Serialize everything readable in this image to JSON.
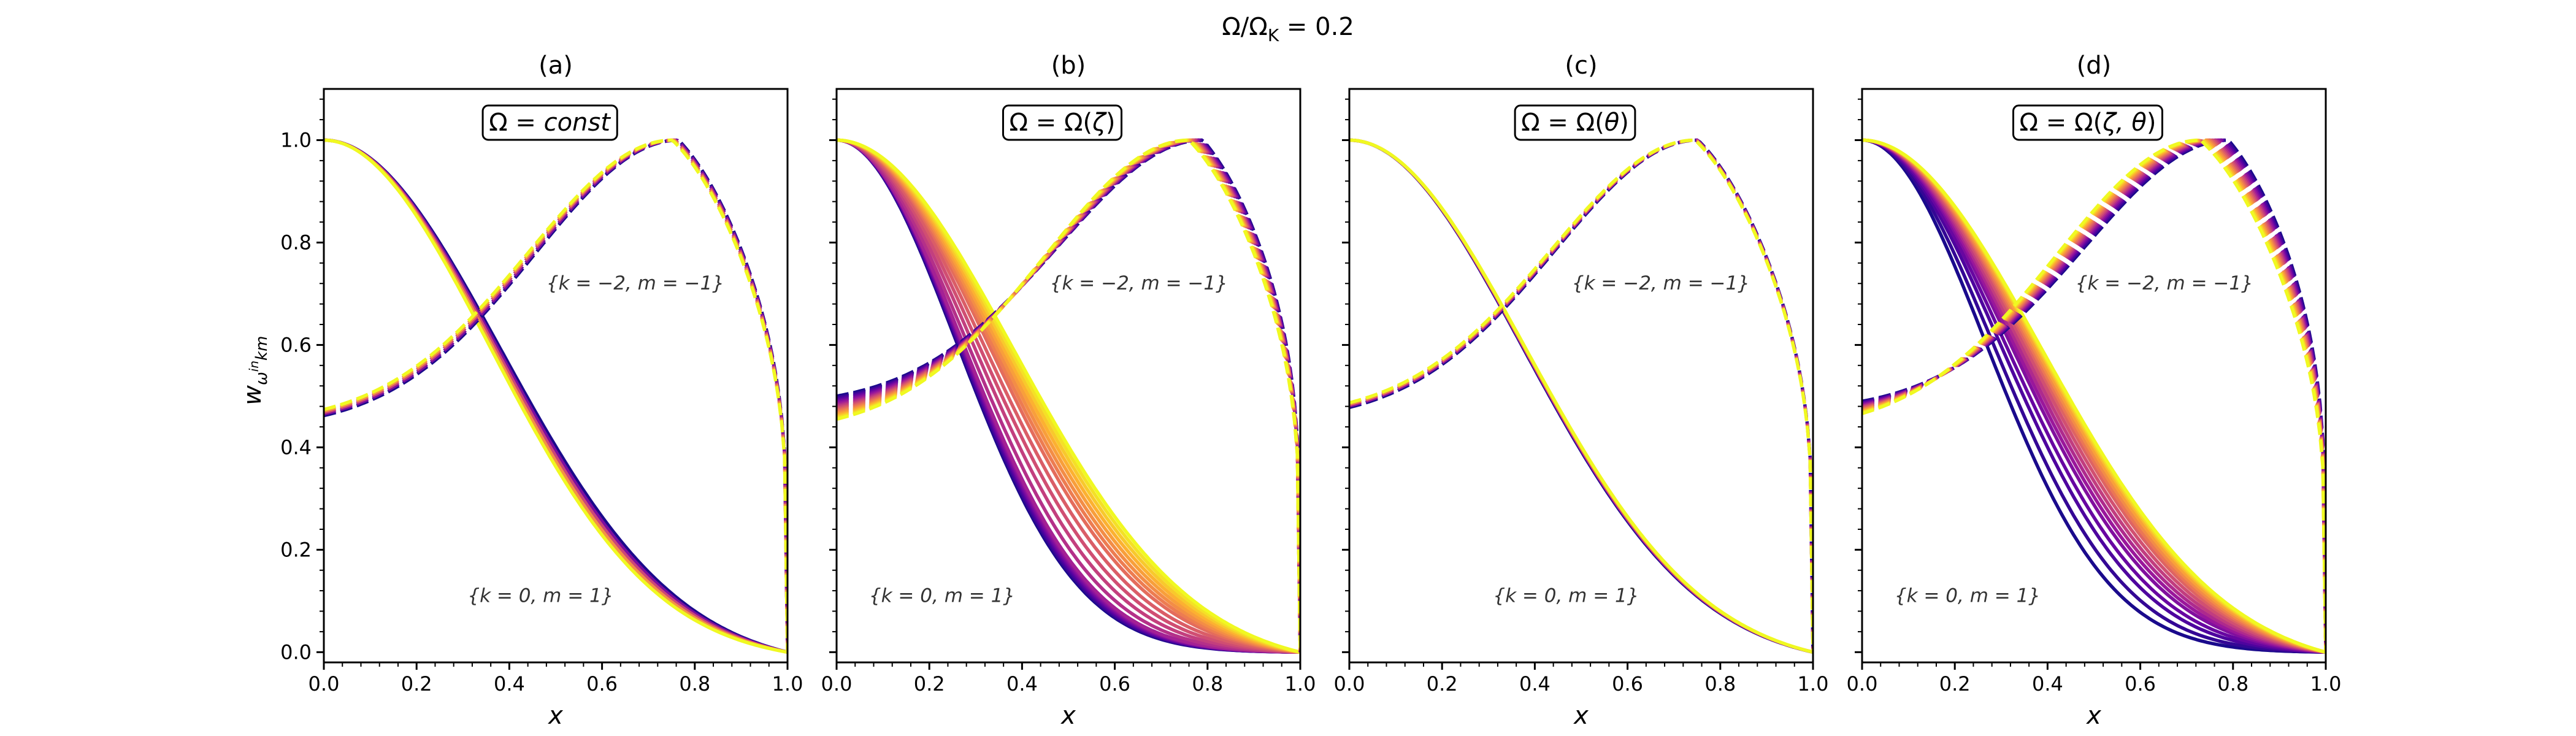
{
  "figure": {
    "suptitle": "Ω/Ω_K = 0.2",
    "suptitle_parts": {
      "a": "Ω/Ω",
      "sub": "K",
      "b": " = 0.2"
    }
  },
  "chart_data": [
    {
      "type": "line",
      "panel": "(a)",
      "title": "(a)",
      "box_label": "Ω = const",
      "box_parts": {
        "pre": "Ω = ",
        "it": "const",
        "post": ""
      },
      "xlabel": "x",
      "ylabel": "w_{ω^{in}km}",
      "ylabel_parts": {
        "w": "w",
        "sub1": "ω",
        "sup": "in",
        "sub2": "km"
      },
      "xlim": [
        0,
        1
      ],
      "ylim": [
        -0.02,
        1.1
      ],
      "xticks": [
        "0.0",
        "0.2",
        "0.4",
        "0.6",
        "0.8",
        "1.0"
      ],
      "yticks": [
        "0.0",
        "0.2",
        "0.4",
        "0.6",
        "0.8",
        "1.0"
      ],
      "annotations": [
        {
          "text": "{k = −2, m = −1}",
          "x": 0.48,
          "y": 0.72
        },
        {
          "text": "{k = 0, m = 1}",
          "x": 0.31,
          "y": 0.11
        }
      ],
      "colormap": [
        "#1a0a8c",
        "#5b02a3",
        "#9a179b",
        "#cb4678",
        "#eb7655",
        "#fdad32",
        "#f0f921"
      ],
      "families": [
        {
          "label": "{k = 0, m = 1}",
          "kind": "solid",
          "width_scales": [
            1.0,
            0.985,
            0.97,
            0.955,
            0.94
          ]
        },
        {
          "label": "{k = −2, m = −1}",
          "kind": "dashed",
          "peak_x": [
            0.765,
            0.762,
            0.758,
            0.755,
            0.752
          ],
          "y0": [
            0.462,
            0.465,
            0.468,
            0.471,
            0.474
          ]
        }
      ]
    },
    {
      "type": "line",
      "panel": "(b)",
      "title": "(b)",
      "box_label": "Ω = Ω(ζ)",
      "box_parts": {
        "pre": "Ω = Ω(",
        "it": "ζ",
        "post": ")"
      },
      "xlabel": "x",
      "xlim": [
        0,
        1
      ],
      "ylim": [
        -0.02,
        1.1
      ],
      "xticks": [
        "0.0",
        "0.2",
        "0.4",
        "0.6",
        "0.8",
        "1.0"
      ],
      "annotations": [
        {
          "text": "{k = −2, m = −1}",
          "x": 0.46,
          "y": 0.72
        },
        {
          "text": "{k = 0, m = 1}",
          "x": 0.07,
          "y": 0.11
        }
      ],
      "colormap": [
        "#1a0a8c",
        "#5b02a3",
        "#9a179b",
        "#cb4678",
        "#eb7655",
        "#fdad32",
        "#f0f921"
      ],
      "families": [
        {
          "label": "{k = 0, m = 1}",
          "kind": "solid",
          "width_scales": [
            0.68,
            0.685,
            0.69,
            0.695,
            0.7,
            0.705,
            0.71,
            0.715,
            0.74,
            0.77,
            0.8,
            0.83,
            0.86,
            0.88,
            0.9,
            0.92,
            0.94,
            0.96,
            0.98,
            1.0
          ]
        },
        {
          "label": "{k = −2, m = −1}",
          "kind": "dashed",
          "peak_x": [
            0.79,
            0.788,
            0.786,
            0.784,
            0.782,
            0.78,
            0.778,
            0.776,
            0.774,
            0.772,
            0.77,
            0.768,
            0.766,
            0.764,
            0.762,
            0.76
          ],
          "y0": [
            0.5,
            0.497,
            0.494,
            0.491,
            0.488,
            0.485,
            0.482,
            0.479,
            0.476,
            0.473,
            0.47,
            0.467,
            0.464,
            0.461,
            0.458,
            0.455
          ]
        }
      ]
    },
    {
      "type": "line",
      "panel": "(c)",
      "title": "(c)",
      "box_label": "Ω = Ω(θ)",
      "box_parts": {
        "pre": "Ω = Ω(",
        "it": "θ",
        "post": ")"
      },
      "xlabel": "x",
      "xlim": [
        0,
        1
      ],
      "ylim": [
        -0.02,
        1.1
      ],
      "xticks": [
        "0.0",
        "0.2",
        "0.4",
        "0.6",
        "0.8",
        "1.0"
      ],
      "annotations": [
        {
          "text": "{k = −2, m = −1}",
          "x": 0.48,
          "y": 0.72
        },
        {
          "text": "{k = 0, m = 1}",
          "x": 0.31,
          "y": 0.11
        }
      ],
      "colormap": [
        "#1a0a8c",
        "#5b02a3",
        "#9a179b",
        "#cb4678",
        "#eb7655",
        "#fdad32",
        "#f0f921"
      ],
      "families": [
        {
          "label": "{k = 0, m = 1}",
          "kind": "solid",
          "width_scales": [
            0.985,
            0.99,
            0.995,
            1.0
          ]
        },
        {
          "label": "{k = −2, m = −1}",
          "kind": "dashed",
          "peak_x": [
            0.752,
            0.75,
            0.748,
            0.746
          ],
          "y0": [
            0.478,
            0.481,
            0.484,
            0.487
          ]
        }
      ]
    },
    {
      "type": "line",
      "panel": "(d)",
      "title": "(d)",
      "box_label": "Ω = Ω(ζ, θ)",
      "box_parts": {
        "pre": "Ω = Ω(",
        "it": "ζ, θ",
        "post": ")"
      },
      "xlabel": "x",
      "xlim": [
        0,
        1
      ],
      "ylim": [
        -0.02,
        1.1
      ],
      "xticks": [
        "0.0",
        "0.2",
        "0.4",
        "0.6",
        "0.8",
        "1.0"
      ],
      "annotations": [
        {
          "text": "{k = −2, m = −1}",
          "x": 0.46,
          "y": 0.72
        },
        {
          "text": "{k = 0, m = 1}",
          "x": 0.07,
          "y": 0.11
        }
      ],
      "colormap": [
        "#1a0a8c",
        "#5b02a3",
        "#9a179b",
        "#cb4678",
        "#eb7655",
        "#fdad32",
        "#f0f921"
      ],
      "families": [
        {
          "label": "{k = 0, m = 1}",
          "kind": "solid",
          "width_scales": [
            0.7,
            0.74,
            0.78,
            0.81,
            0.84,
            0.86,
            0.88,
            0.9,
            0.92,
            0.94,
            0.955,
            0.97,
            0.985,
            1.0,
            1.01,
            1.02
          ]
        },
        {
          "label": "{k = −2, m = −1}",
          "kind": "dashed",
          "peak_x": [
            0.79,
            0.785,
            0.78,
            0.775,
            0.77,
            0.765,
            0.76,
            0.755,
            0.75,
            0.745,
            0.74,
            0.735,
            0.73
          ],
          "y0": [
            0.49,
            0.488,
            0.486,
            0.484,
            0.482,
            0.48,
            0.478,
            0.476,
            0.474,
            0.472,
            0.47,
            0.468,
            0.466
          ]
        }
      ]
    }
  ]
}
